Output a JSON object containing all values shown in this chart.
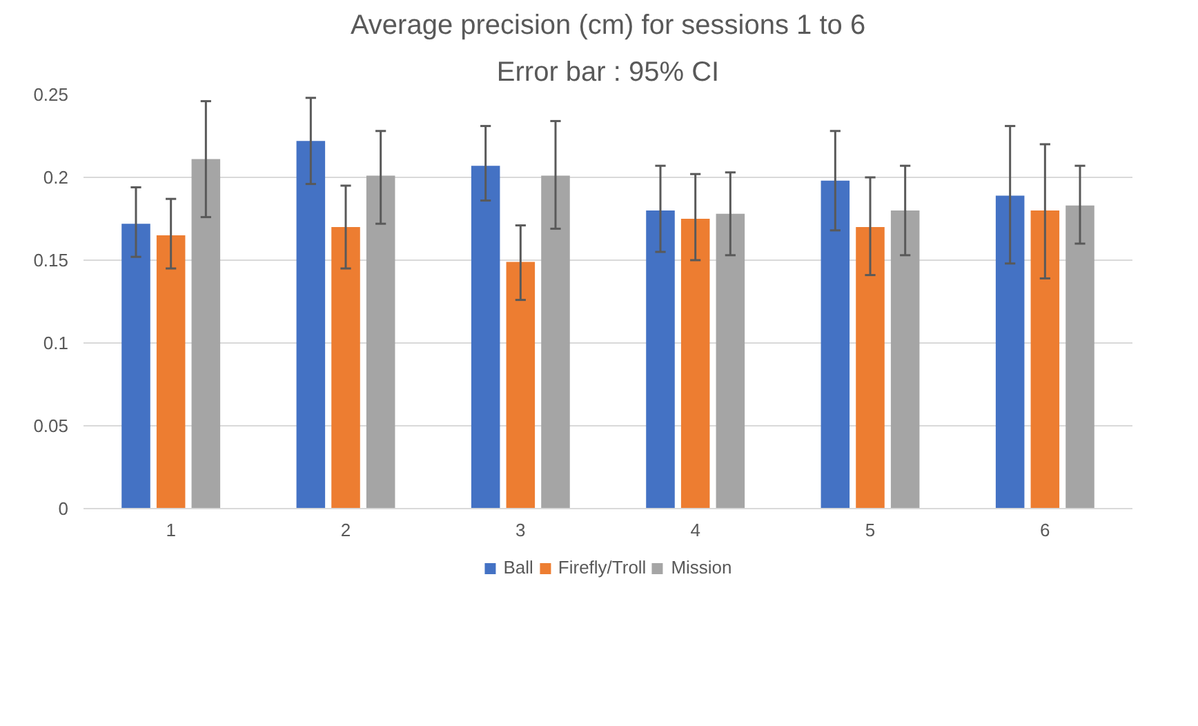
{
  "chart_data": {
    "type": "bar",
    "title": "Average precision (cm) for sessions 1 to 6",
    "subtitle": "Error bar : 95% CI",
    "categories": [
      "1",
      "2",
      "3",
      "4",
      "5",
      "6"
    ],
    "series": [
      {
        "name": "Ball",
        "color": "#4472c4",
        "values": [
          0.172,
          0.222,
          0.207,
          0.18,
          0.198,
          0.189
        ],
        "errors": [
          [
            0.152,
            0.194
          ],
          [
            0.196,
            0.248
          ],
          [
            0.186,
            0.231
          ],
          [
            0.155,
            0.207
          ],
          [
            0.168,
            0.228
          ],
          [
            0.148,
            0.231
          ]
        ]
      },
      {
        "name": "Firefly/Troll",
        "color": "#ed7d31",
        "values": [
          0.165,
          0.17,
          0.149,
          0.175,
          0.17,
          0.18
        ],
        "errors": [
          [
            0.145,
            0.187
          ],
          [
            0.145,
            0.195
          ],
          [
            0.126,
            0.171
          ],
          [
            0.15,
            0.202
          ],
          [
            0.141,
            0.2
          ],
          [
            0.139,
            0.22
          ]
        ]
      },
      {
        "name": "Mission",
        "color": "#a5a5a5",
        "values": [
          0.211,
          0.201,
          0.201,
          0.178,
          0.18,
          0.183
        ],
        "errors": [
          [
            0.176,
            0.246
          ],
          [
            0.172,
            0.228
          ],
          [
            0.169,
            0.234
          ],
          [
            0.153,
            0.203
          ],
          [
            0.153,
            0.207
          ],
          [
            0.16,
            0.207
          ]
        ]
      }
    ],
    "ylim": [
      0,
      0.25
    ],
    "yticks": [
      0,
      0.05,
      0.1,
      0.15,
      0.2,
      0.25
    ],
    "grid": "y",
    "legend": "bottom"
  }
}
